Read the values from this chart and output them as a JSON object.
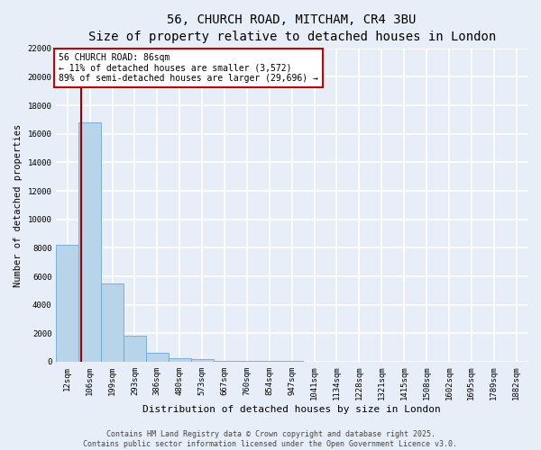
{
  "title": "56, CHURCH ROAD, MITCHAM, CR4 3BU",
  "subtitle": "Size of property relative to detached houses in London",
  "xlabel": "Distribution of detached houses by size in London",
  "ylabel": "Number of detached properties",
  "bar_color": "#b8d4ea",
  "bar_edge_color": "#6aaad4",
  "background_color": "#e8eef8",
  "grid_color": "#d0d8e8",
  "categories": [
    "12sqm",
    "106sqm",
    "199sqm",
    "293sqm",
    "386sqm",
    "480sqm",
    "573sqm",
    "667sqm",
    "760sqm",
    "854sqm",
    "947sqm",
    "1041sqm",
    "1134sqm",
    "1228sqm",
    "1321sqm",
    "1415sqm",
    "1508sqm",
    "1602sqm",
    "1695sqm",
    "1789sqm",
    "1882sqm"
  ],
  "values": [
    8200,
    16800,
    5500,
    1850,
    650,
    280,
    170,
    90,
    65,
    48,
    38,
    28,
    20,
    15,
    12,
    9,
    7,
    6,
    5,
    4,
    3
  ],
  "ylim": [
    0,
    22000
  ],
  "yticks": [
    0,
    2000,
    4000,
    6000,
    8000,
    10000,
    12000,
    14000,
    16000,
    18000,
    20000,
    22000
  ],
  "property_line_x": 0.62,
  "property_line_color": "#990000",
  "annotation_text": "56 CHURCH ROAD: 86sqm\n← 11% of detached houses are smaller (3,572)\n89% of semi-detached houses are larger (29,696) →",
  "annotation_box_color": "#ffffff",
  "annotation_box_edge_color": "#cc0000",
  "footer_text": "Contains HM Land Registry data © Crown copyright and database right 2025.\nContains public sector information licensed under the Open Government Licence v3.0.",
  "title_fontsize": 10,
  "subtitle_fontsize": 9,
  "annotation_fontsize": 7,
  "footer_fontsize": 6,
  "tick_fontsize": 6.5,
  "label_fontsize": 8,
  "ylabel_fontsize": 7.5
}
